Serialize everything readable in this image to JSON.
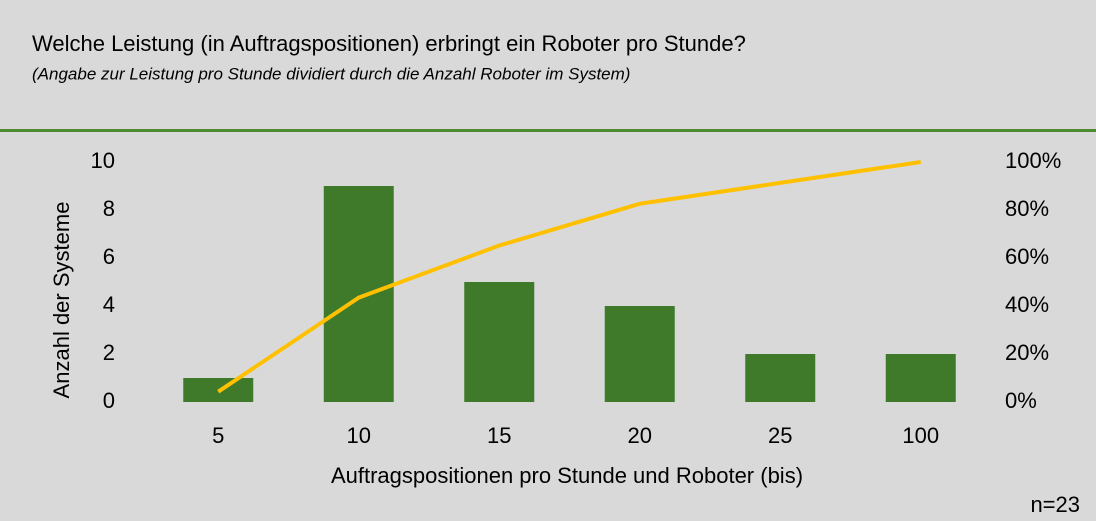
{
  "chart_data": {
    "type": "bar",
    "title": "Welche Leistung (in Auftragspositionen) erbringt ein Roboter pro Stunde?",
    "subtitle": "(Angabe zur Leistung pro Stunde dividiert durch die Anzahl Roboter im System)",
    "x_label": "Auftragspositionen pro Stunde und Roboter (bis)",
    "y_label": "Anzahl der Systeme",
    "note": "n=23",
    "categories": [
      "5",
      "10",
      "15",
      "20",
      "25",
      "100"
    ],
    "series": [
      {
        "color": "#3f7a2a",
        "values": [
          1,
          9,
          5,
          4,
          2,
          2
        ]
      },
      {
        "type": "line",
        "axis": "y2",
        "color": "#ffc000",
        "values": [
          4.3,
          43.5,
          65.2,
          82.6,
          91.3,
          100
        ]
      }
    ],
    "ylim": [
      0,
      10
    ],
    "yticks": [
      0,
      2,
      4,
      6,
      8,
      10
    ],
    "y2lim": [
      0,
      100
    ],
    "y2ticks": [
      {
        "value": 0,
        "label": "0%"
      },
      {
        "value": 20,
        "label": "20%"
      },
      {
        "value": 40,
        "label": "40%"
      },
      {
        "value": 60,
        "label": "60%"
      },
      {
        "value": 80,
        "label": "80%"
      },
      {
        "value": 100,
        "label": "100%"
      }
    ],
    "grid": false
  }
}
